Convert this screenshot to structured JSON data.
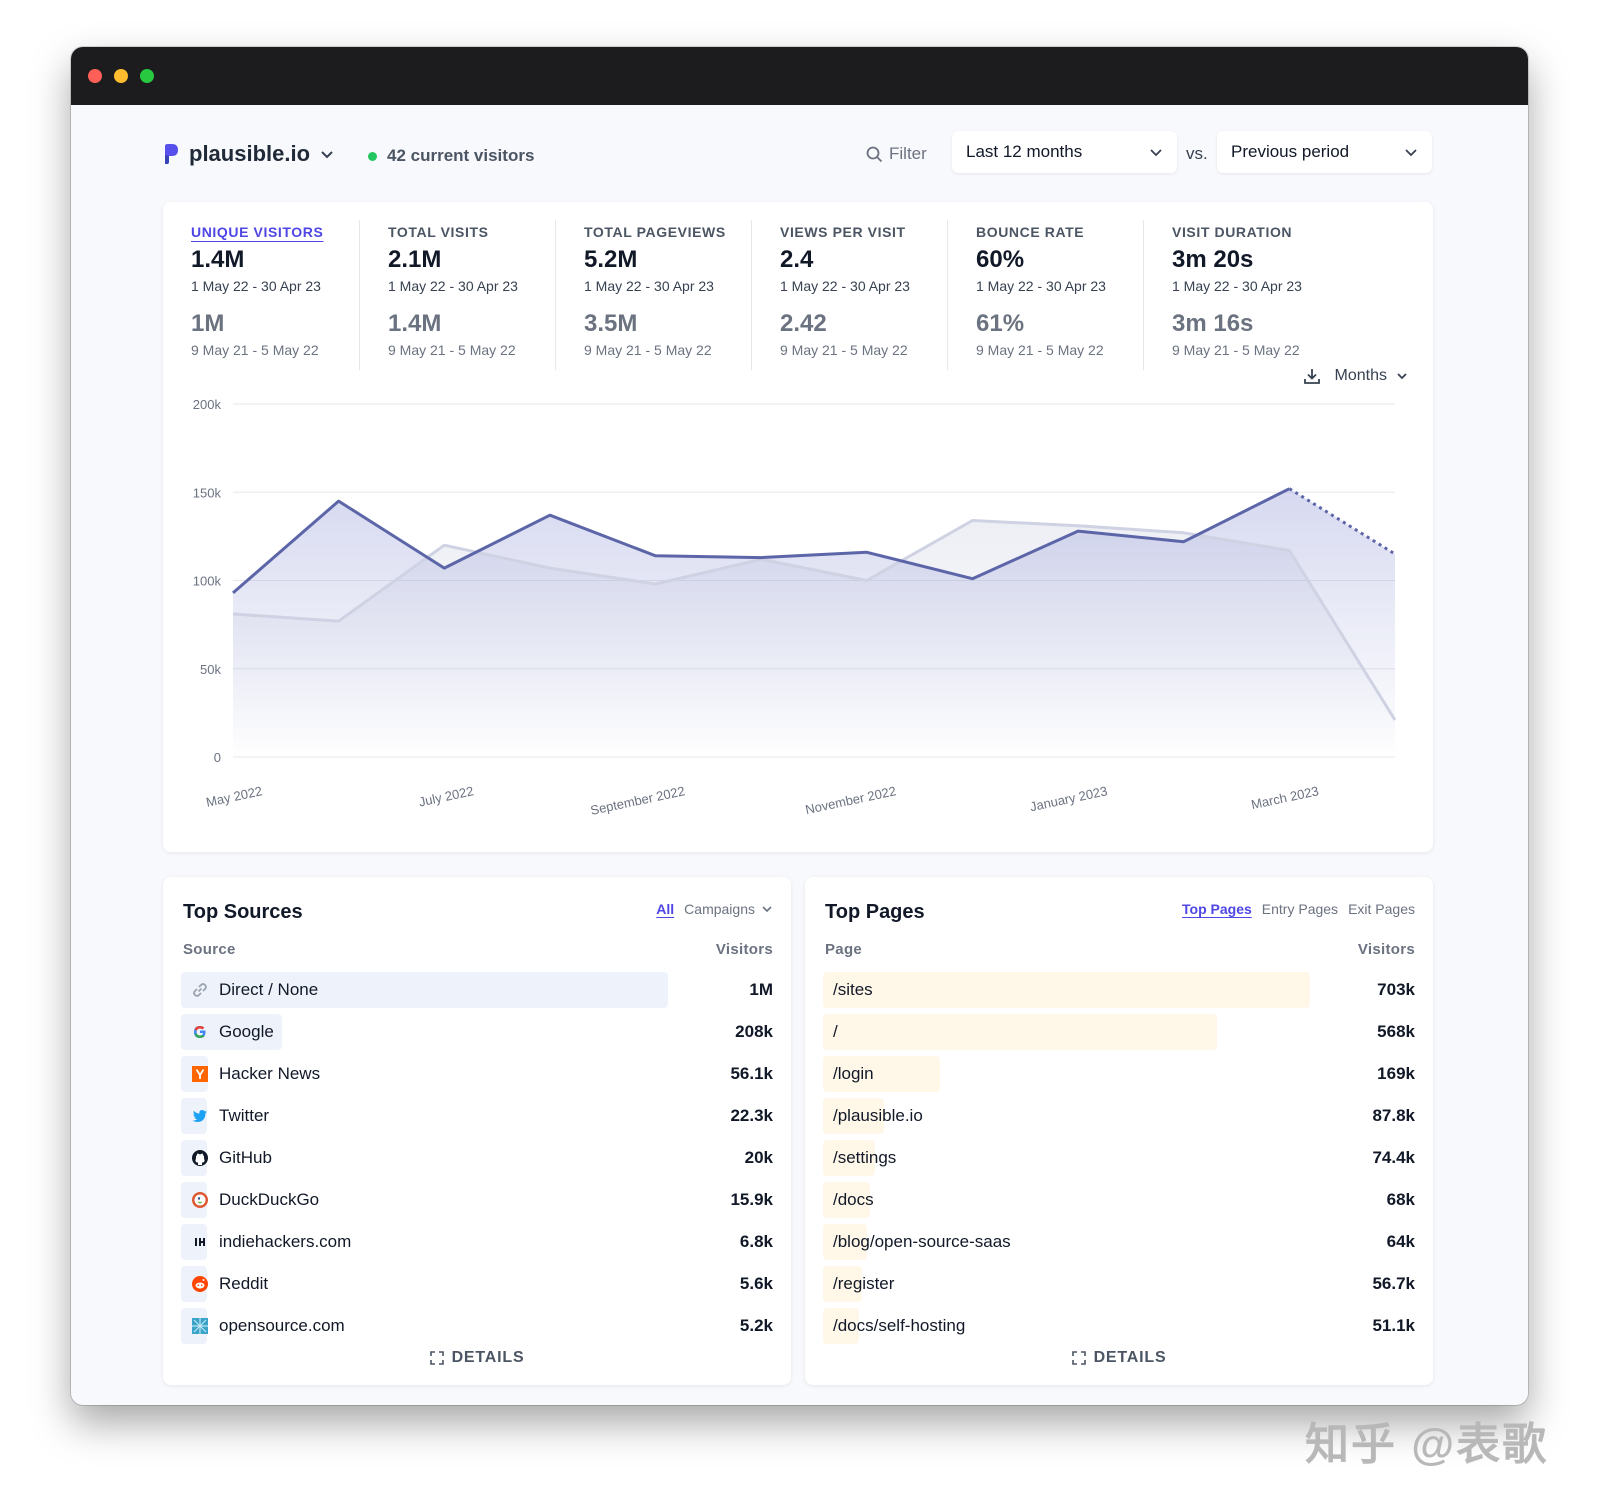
{
  "header": {
    "site_name": "plausible.io",
    "live_visitors": "42 current visitors",
    "filter_label": "Filter",
    "period": "Last 12 months",
    "vs_label": "vs.",
    "compare": "Previous period"
  },
  "stats": [
    {
      "label": "UNIQUE VISITORS",
      "value": "1.4M",
      "range": "1 May 22 - 30 Apr 23",
      "prev": "1M",
      "prev_range": "9 May 21 - 5 May 22",
      "active": true
    },
    {
      "label": "TOTAL VISITS",
      "value": "2.1M",
      "range": "1 May 22 - 30 Apr 23",
      "prev": "1.4M",
      "prev_range": "9 May 21 - 5 May 22"
    },
    {
      "label": "TOTAL PAGEVIEWS",
      "value": "5.2M",
      "range": "1 May 22 - 30 Apr 23",
      "prev": "3.5M",
      "prev_range": "9 May 21 - 5 May 22"
    },
    {
      "label": "VIEWS PER VISIT",
      "value": "2.4",
      "range": "1 May 22 - 30 Apr 23",
      "prev": "2.42",
      "prev_range": "9 May 21 - 5 May 22"
    },
    {
      "label": "BOUNCE RATE",
      "value": "60%",
      "range": "1 May 22 - 30 Apr 23",
      "prev": "61%",
      "prev_range": "9 May 21 - 5 May 22"
    },
    {
      "label": "VISIT DURATION",
      "value": "3m 20s",
      "range": "1 May 22 - 30 Apr 23",
      "prev": "3m 16s",
      "prev_range": "9 May 21 - 5 May 22"
    }
  ],
  "interval": "Months",
  "chart_data": {
    "type": "area",
    "x": [
      "2022-05",
      "2022-06",
      "2022-07",
      "2022-08",
      "2022-09",
      "2022-10",
      "2022-11",
      "2022-12",
      "2023-01",
      "2023-02",
      "2023-03",
      "2023-04"
    ],
    "tick_labels": [
      "May 2022",
      "July 2022",
      "September 2022",
      "November 2022",
      "January 2023",
      "March 2023"
    ],
    "y_ticks": [
      "0",
      "50k",
      "100k",
      "150k",
      "200k"
    ],
    "ylim": [
      0,
      200000
    ],
    "series": [
      {
        "values": [
          93000,
          145000,
          107000,
          137000,
          114000,
          113000,
          116000,
          101000,
          128000,
          122000,
          152000,
          115000
        ],
        "incomplete_last": true
      },
      {
        "values": [
          81000,
          77000,
          120000,
          107000,
          98000,
          112000,
          100000,
          134000,
          131000,
          127000,
          117000,
          21000
        ]
      }
    ],
    "colors": {
      "current": "#5b65a8",
      "previous": "#cfd2e2"
    },
    "grid": true
  },
  "sources": {
    "title": "Top Sources",
    "tab_all": "All",
    "tab_campaigns": "Campaigns",
    "col_source": "Source",
    "col_visitors": "Visitors",
    "details": "DETAILS",
    "rows": [
      {
        "label": "Direct / None",
        "value": "1M",
        "icon": "link-icon",
        "fraction": 1.0
      },
      {
        "label": "Google",
        "value": "208k",
        "icon": "google-icon",
        "fraction": 0.208
      },
      {
        "label": "Hacker News",
        "value": "56.1k",
        "icon": "hacker-news-icon",
        "fraction": 0.056
      },
      {
        "label": "Twitter",
        "value": "22.3k",
        "icon": "twitter-icon",
        "fraction": 0.022
      },
      {
        "label": "GitHub",
        "value": "20k",
        "icon": "github-icon",
        "fraction": 0.02
      },
      {
        "label": "DuckDuckGo",
        "value": "15.9k",
        "icon": "duckduckgo-icon",
        "fraction": 0.016
      },
      {
        "label": "indiehackers.com",
        "value": "6.8k",
        "icon": "indiehackers-icon",
        "fraction": 0.007
      },
      {
        "label": "Reddit",
        "value": "5.6k",
        "icon": "reddit-icon",
        "fraction": 0.006
      },
      {
        "label": "opensource.com",
        "value": "5.2k",
        "icon": "opensource-icon",
        "fraction": 0.005
      }
    ]
  },
  "pages": {
    "title": "Top Pages",
    "tab_top": "Top Pages",
    "tab_entry": "Entry Pages",
    "tab_exit": "Exit Pages",
    "col_page": "Page",
    "col_visitors": "Visitors",
    "details": "DETAILS",
    "rows": [
      {
        "label": "/sites",
        "value": "703k",
        "fraction": 1.0
      },
      {
        "label": "/",
        "value": "568k",
        "fraction": 0.81
      },
      {
        "label": "/login",
        "value": "169k",
        "fraction": 0.24
      },
      {
        "label": "/plausible.io",
        "value": "87.8k",
        "fraction": 0.125
      },
      {
        "label": "/settings",
        "value": "74.4k",
        "fraction": 0.106
      },
      {
        "label": "/docs",
        "value": "68k",
        "fraction": 0.097
      },
      {
        "label": "/blog/open-source-saas",
        "value": "64k",
        "fraction": 0.091
      },
      {
        "label": "/register",
        "value": "56.7k",
        "fraction": 0.081
      },
      {
        "label": "/docs/self-hosting",
        "value": "51.1k",
        "fraction": 0.073
      }
    ]
  },
  "watermark": "知乎 @表歌"
}
